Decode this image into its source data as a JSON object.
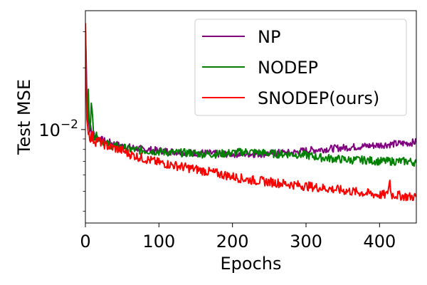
{
  "chart_data": {
    "type": "line",
    "title": "",
    "xlabel": "Epochs",
    "ylabel": "Test MSE",
    "xlim": [
      0,
      450
    ],
    "ylim": [
      0.0035,
      0.038
    ],
    "yscale": "log",
    "xticks": [
      0,
      100,
      200,
      300,
      400
    ],
    "xtick_labels": [
      "0",
      "100",
      "200",
      "300",
      "400"
    ],
    "yticks_major": [
      0.01
    ],
    "ytick_labels": [
      "10^-2"
    ],
    "yticks_minor": [
      0.004,
      0.005,
      0.006,
      0.007,
      0.008,
      0.009,
      0.02,
      0.03
    ],
    "grid": false,
    "legend_position": "top-right",
    "series": [
      {
        "name": "NP",
        "color": "#800080",
        "points": [
          [
            0,
            0.032
          ],
          [
            1,
            0.022
          ],
          [
            2,
            0.015
          ],
          [
            3,
            0.012
          ],
          [
            5,
            0.0105
          ],
          [
            8,
            0.0098
          ],
          [
            12,
            0.0094
          ],
          [
            16,
            0.0092
          ],
          [
            20,
            0.009
          ],
          [
            25,
            0.0088
          ],
          [
            30,
            0.0087
          ],
          [
            40,
            0.0085
          ],
          [
            50,
            0.0083
          ],
          [
            60,
            0.0082
          ],
          [
            70,
            0.0081
          ],
          [
            80,
            0.008
          ],
          [
            100,
            0.0079
          ],
          [
            120,
            0.0078
          ],
          [
            140,
            0.0077
          ],
          [
            160,
            0.0077
          ],
          [
            180,
            0.0076
          ],
          [
            200,
            0.0076
          ],
          [
            220,
            0.0076
          ],
          [
            240,
            0.0076
          ],
          [
            260,
            0.0077
          ],
          [
            280,
            0.0077
          ],
          [
            300,
            0.0079
          ],
          [
            320,
            0.008
          ],
          [
            340,
            0.0081
          ],
          [
            360,
            0.0082
          ],
          [
            380,
            0.0083
          ],
          [
            400,
            0.0084
          ],
          [
            420,
            0.0085
          ],
          [
            440,
            0.0086
          ],
          [
            450,
            0.0087
          ]
        ]
      },
      {
        "name": "NODEP",
        "color": "#008000",
        "points": [
          [
            0,
            0.03
          ],
          [
            1,
            0.018
          ],
          [
            2,
            0.013
          ],
          [
            3,
            0.011
          ],
          [
            4,
            0.015
          ],
          [
            5,
            0.012
          ],
          [
            6,
            0.0105
          ],
          [
            8,
            0.013
          ],
          [
            10,
            0.011
          ],
          [
            12,
            0.0095
          ],
          [
            16,
            0.0092
          ],
          [
            20,
            0.0089
          ],
          [
            25,
            0.0087
          ],
          [
            30,
            0.0085
          ],
          [
            40,
            0.0083
          ],
          [
            50,
            0.0082
          ],
          [
            60,
            0.008
          ],
          [
            80,
            0.0079
          ],
          [
            100,
            0.0078
          ],
          [
            120,
            0.0077
          ],
          [
            140,
            0.0077
          ],
          [
            160,
            0.0076
          ],
          [
            180,
            0.0076
          ],
          [
            200,
            0.0077
          ],
          [
            220,
            0.0078
          ],
          [
            240,
            0.0077
          ],
          [
            260,
            0.0076
          ],
          [
            280,
            0.0076
          ],
          [
            300,
            0.0075
          ],
          [
            320,
            0.0073
          ],
          [
            340,
            0.0072
          ],
          [
            360,
            0.0071
          ],
          [
            380,
            0.0071
          ],
          [
            400,
            0.007
          ],
          [
            420,
            0.007
          ],
          [
            440,
            0.007
          ],
          [
            450,
            0.0069
          ]
        ]
      },
      {
        "name": "SNODEP(ours)",
        "color": "#ff0000",
        "points": [
          [
            0,
            0.031
          ],
          [
            1,
            0.018
          ],
          [
            2,
            0.012
          ],
          [
            3,
            0.0105
          ],
          [
            5,
            0.0095
          ],
          [
            8,
            0.0092
          ],
          [
            12,
            0.009
          ],
          [
            16,
            0.0089
          ],
          [
            20,
            0.0087
          ],
          [
            25,
            0.0085
          ],
          [
            30,
            0.0083
          ],
          [
            40,
            0.0081
          ],
          [
            50,
            0.0079
          ],
          [
            60,
            0.0076
          ],
          [
            70,
            0.0074
          ],
          [
            80,
            0.0072
          ],
          [
            100,
            0.0069
          ],
          [
            120,
            0.0067
          ],
          [
            140,
            0.0065
          ],
          [
            160,
            0.0063
          ],
          [
            180,
            0.0061
          ],
          [
            200,
            0.0059
          ],
          [
            220,
            0.0057
          ],
          [
            240,
            0.0056
          ],
          [
            260,
            0.0055
          ],
          [
            280,
            0.0054
          ],
          [
            300,
            0.0053
          ],
          [
            320,
            0.0052
          ],
          [
            340,
            0.0051
          ],
          [
            360,
            0.005
          ],
          [
            380,
            0.0049
          ],
          [
            400,
            0.0048
          ],
          [
            410,
            0.0048
          ],
          [
            414,
            0.0056
          ],
          [
            416,
            0.0048
          ],
          [
            420,
            0.0048
          ],
          [
            440,
            0.0047
          ],
          [
            450,
            0.0047
          ]
        ]
      }
    ]
  }
}
